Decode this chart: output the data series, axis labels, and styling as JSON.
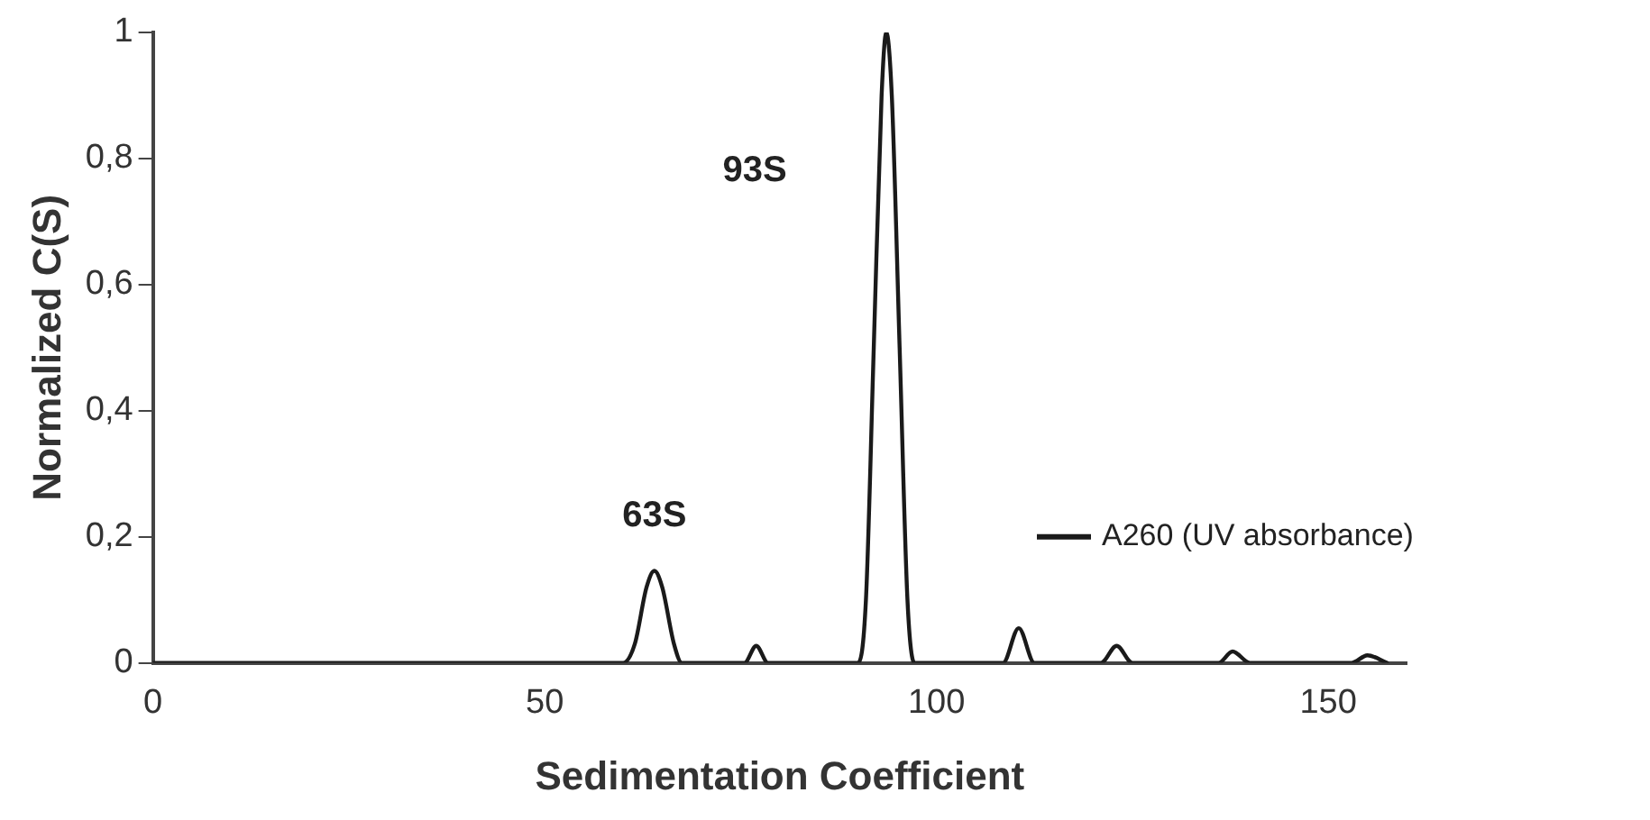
{
  "chart_data": {
    "type": "line",
    "xlabel": "Sedimentation Coefficient",
    "ylabel": "Normalized C(S)",
    "xlim": [
      0,
      160
    ],
    "xticks": [
      0,
      50,
      100,
      150
    ],
    "ylim": [
      0,
      1
    ],
    "yticks": [
      0,
      {
        "value": 0.2,
        "label": "0,2"
      },
      {
        "value": 0.4,
        "label": "0,4"
      },
      {
        "value": 0.6,
        "label": "0,6"
      },
      {
        "value": 0.8,
        "label": "0,8"
      },
      1
    ],
    "grid": false,
    "legend": "right",
    "marker": "none",
    "line_style": "solid",
    "annotations": [
      {
        "text": "63S",
        "x": 64,
        "y": 0.146
      },
      "93S"
    ],
    "series": [
      {
        "name": "A260 (UV absorbance)",
        "color": "#1a1a1a",
        "x": [
          0,
          60,
          61.5,
          63,
          64,
          65,
          66.5,
          67.5,
          75.5,
          77,
          78.5,
          90,
          91,
          92,
          93,
          93.6,
          94.3,
          95.3,
          96.3,
          97.2,
          108.5,
          110.5,
          112.5,
          121,
          123,
          125,
          136,
          137.8,
          140,
          153,
          155,
          157.5
        ],
        "values": [
          0,
          0,
          0.03,
          0.12,
          0.146,
          0.12,
          0.03,
          0,
          0,
          0.027,
          0,
          0,
          0.1,
          0.5,
          0.9,
          1,
          0.9,
          0.5,
          0.1,
          0,
          0,
          0.055,
          0,
          0,
          0.027,
          0,
          0,
          0.018,
          0,
          0,
          0.012,
          0
        ]
      }
    ]
  }
}
